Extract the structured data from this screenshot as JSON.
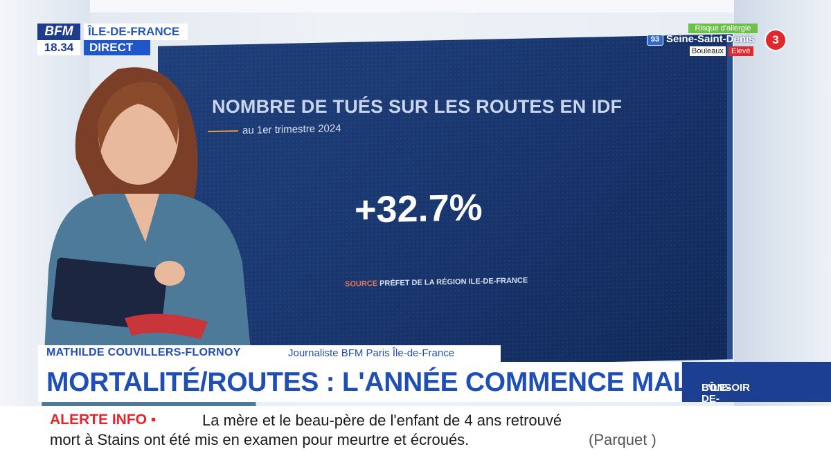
{
  "branding": {
    "logo": "BFM",
    "time": "18.34",
    "region": "ÎLE-DE-FRANCE",
    "live": "DIRECT"
  },
  "pollen": {
    "title": "Risque d'allergie",
    "dept_number": "93",
    "dept_name": "Seine-Saint-Denis",
    "plant": "Bouleaux",
    "level": "Elevé",
    "risk_index": "3"
  },
  "screen": {
    "title": "NOMBRE DE TUÉS SUR LES ROUTES EN IDF",
    "subtitle": "au 1er trimestre 2024",
    "value": "+32.7%",
    "source_keyword": "SOURCE",
    "source_text": "PRÉFET DE LA RÉGION ILE-DE-FRANCE"
  },
  "lower_third": {
    "name": "MATHILDE COUVILLERS-FLORNOY",
    "role": "Journaliste BFM Paris Île-de-France",
    "headline": "MORTALITÉ/ROUTES : L'ANNÉE COMMENCE MAL EN IDF",
    "show_line1": "BONSOIR",
    "show_line2": "L'ÎLE-DE-FRANCE"
  },
  "ticker": {
    "label": "ALERTE INFO ▪",
    "line1": "La mère et le beau-père de l'enfant de 4 ans retrouvé",
    "line2": "mort à Stains ont été mis en examen pour meurtre et écroués.",
    "source": "(Parquet )"
  },
  "colors": {
    "brand_blue": "#1f4fb5",
    "alert_red": "#e3262b",
    "screen_blue": "#1a3770"
  }
}
